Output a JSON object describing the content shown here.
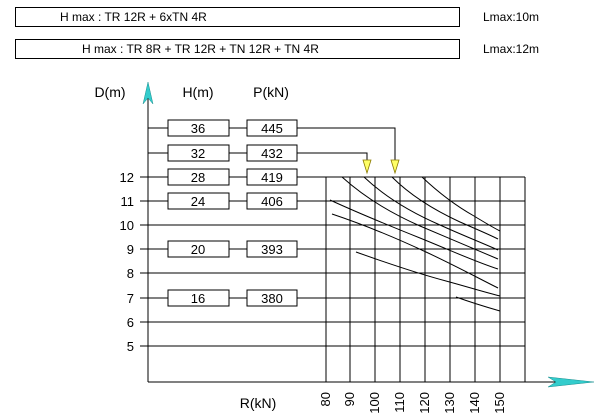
{
  "config_table": {
    "rows": [
      {
        "formula": "H max :  TR 12R + 6xTN 4R",
        "lmax": "Lmax:10m"
      },
      {
        "formula": "H max :  TR 8R + TR 12R + TN 12R + TN 4R",
        "lmax": "Lmax:12m"
      }
    ]
  },
  "headers": {
    "d": "D(m)",
    "h": "H(m)",
    "p": "P(kN)"
  },
  "load_rows": [
    {
      "h": "36",
      "p": "445"
    },
    {
      "h": "32",
      "p": "432"
    },
    {
      "h": "28",
      "p": "419"
    },
    {
      "h": "24",
      "p": "406"
    },
    {
      "h": "20",
      "p": "393"
    },
    {
      "h": "16",
      "p": "380"
    }
  ],
  "d_ticks": [
    "12",
    "11",
    "10",
    "9",
    "8",
    "7",
    "6",
    "5"
  ],
  "r_ticks": [
    "80",
    "90",
    "100",
    "110",
    "120",
    "130",
    "140",
    "150"
  ],
  "r_axis_label": "R(kN)",
  "colors": {
    "marker": "#ffff66",
    "axis_arrow": "#33cccc",
    "line": "#000000"
  }
}
